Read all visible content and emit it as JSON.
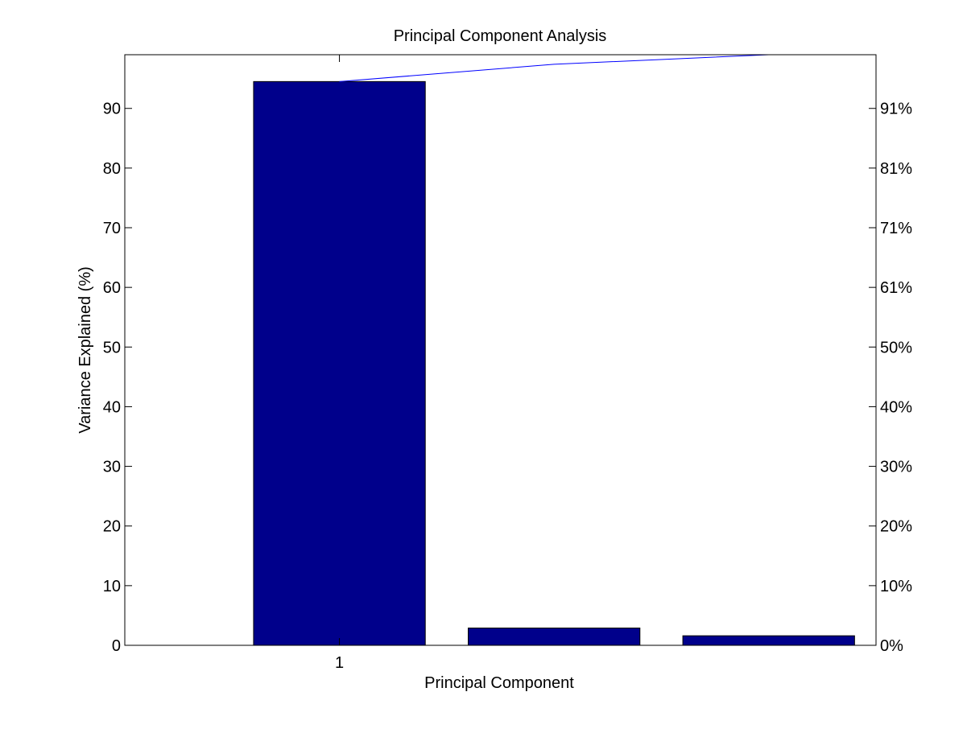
{
  "chart_data": {
    "type": "bar",
    "title": "Principal Component Analysis",
    "xlabel": "Principal Component",
    "ylabel": "Variance Explained (%)",
    "categories": [
      "1",
      "2",
      "3"
    ],
    "x_tick_labels_shown": [
      "1"
    ],
    "values": [
      94.5,
      2.9,
      1.6
    ],
    "cumulative": [
      94.5,
      97.4,
      99.0
    ],
    "ylim": [
      0,
      99
    ],
    "xlim": [
      0,
      3.5
    ],
    "y_ticks": [
      0,
      10,
      20,
      30,
      40,
      50,
      60,
      70,
      80,
      90
    ],
    "y2_tick_labels": [
      "0%",
      "10%",
      "20%",
      "30%",
      "40%",
      "50%",
      "61%",
      "71%",
      "81%",
      "91%"
    ],
    "grid": false,
    "bar_color": "#00008B",
    "line_color": "#0000FF"
  }
}
